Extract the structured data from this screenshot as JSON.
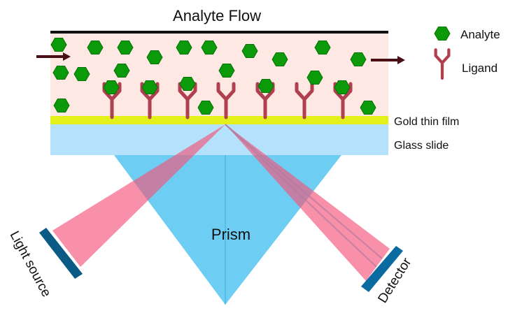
{
  "title": "Analyte Flow",
  "legend": {
    "analyte": "Analyte",
    "ligand": "Ligand"
  },
  "layers": {
    "gold": "Gold thin film",
    "glass": "Glass slide"
  },
  "prism": "Prism",
  "light_source": "Light source",
  "detector": "Detector",
  "colors": {
    "analyte": "#0a9a0a",
    "ligand": "#b0404f",
    "flow_region": "#fde8e3",
    "gold_film": "#e4f01a",
    "glass_slide": "#b4e1fb",
    "prism": "#6dcdf3",
    "beam": "#f2547a",
    "device": "#0b5a86"
  }
}
